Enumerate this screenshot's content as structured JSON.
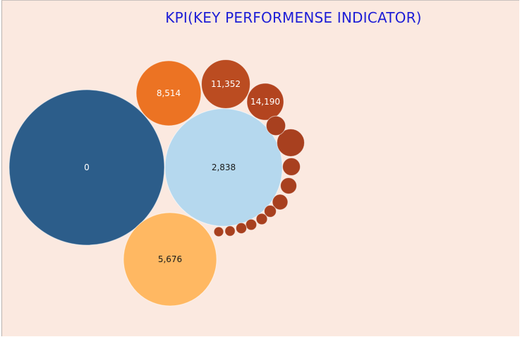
{
  "chart_data": {
    "type": "bubble",
    "title": "KPI(KEY PERFORMENSE INDICATOR)",
    "grid": false,
    "legend": "none",
    "bubbles": [
      {
        "label": "0",
        "size": 48400,
        "color": "#2c5d8a",
        "text_color": "#ffffff"
      },
      {
        "label": "2,838",
        "size": 27700,
        "color": "#b5d8ee",
        "text_color": "#1a1a1a"
      },
      {
        "label": "5,676",
        "size": 17430,
        "color": "#ffb862",
        "text_color": "#1a1a1a"
      },
      {
        "label": "8,514",
        "size": 8460,
        "color": "#ec7323",
        "text_color": "#ffffff"
      },
      {
        "label": "11,352",
        "size": 4760,
        "color": "#bb4c21",
        "text_color": "#ffffff"
      },
      {
        "label": "14,190",
        "size": 2730,
        "color": "#b3441f",
        "text_color": "#ffffff"
      },
      {
        "label": "",
        "size": 1520,
        "color": "#a8401f",
        "text_color": "#ffffff"
      },
      {
        "label": "",
        "size": 750,
        "color": "#a8401f",
        "text_color": "#ffffff"
      },
      {
        "label": "",
        "size": 630,
        "color": "#a8401f",
        "text_color": "#ffffff"
      },
      {
        "label": "",
        "size": 530,
        "color": "#a8401f",
        "text_color": "#ffffff"
      },
      {
        "label": "",
        "size": 480,
        "color": "#a8401f",
        "text_color": "#ffffff"
      },
      {
        "label": "",
        "size": 290,
        "color": "#a8401f",
        "text_color": "#ffffff"
      },
      {
        "label": "",
        "size": 250,
        "color": "#a8401f",
        "text_color": "#ffffff"
      },
      {
        "label": "",
        "size": 240,
        "color": "#a8401f",
        "text_color": "#ffffff"
      },
      {
        "label": "",
        "size": 230,
        "color": "#a8401f",
        "text_color": "#ffffff"
      },
      {
        "label": "",
        "size": 210,
        "color": "#a8401f",
        "text_color": "#ffffff"
      },
      {
        "label": "",
        "size": 190,
        "color": "#a8401f",
        "text_color": "#ffffff"
      }
    ]
  }
}
